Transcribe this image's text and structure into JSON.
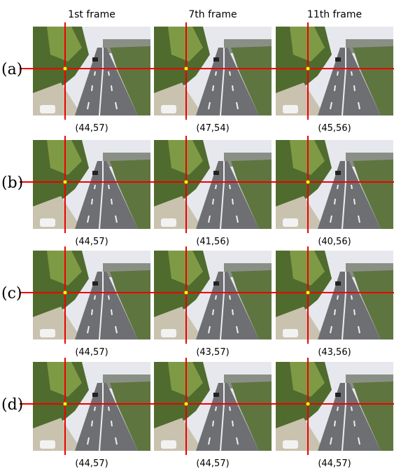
{
  "headers": [
    "1st frame",
    "7th frame",
    "11th frame"
  ],
  "rows": [
    {
      "label": "(a)",
      "coords": [
        "(44,57)",
        "(47,54)",
        "(45,56)"
      ]
    },
    {
      "label": "(b)",
      "coords": [
        "(44,57)",
        "(41,56)",
        "(40,56)"
      ]
    },
    {
      "label": "(c)",
      "coords": [
        "(44,57)",
        "(43,57)",
        "(43,56)"
      ]
    },
    {
      "label": "(d)",
      "coords": [
        "(44,57)",
        "(44,57)",
        "(44,57)"
      ]
    }
  ]
}
